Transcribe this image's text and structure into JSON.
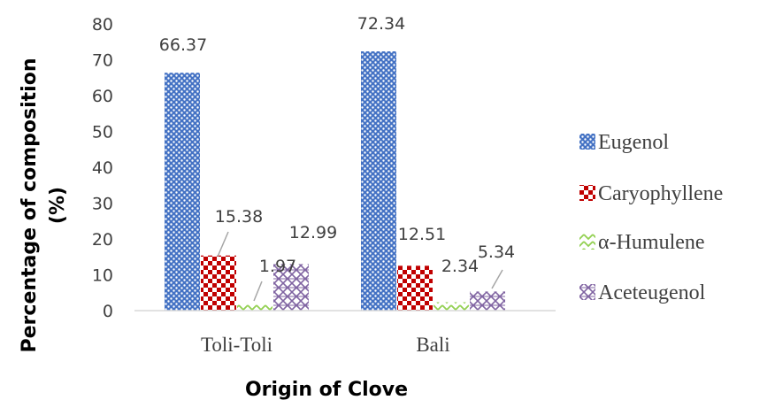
{
  "chart_data": {
    "type": "bar",
    "categories": [
      "Toli-Toli",
      "Bali"
    ],
    "series": [
      {
        "name": "Eugenol",
        "values": [
          66.37,
          72.34
        ],
        "color": "#4472C4",
        "pattern": "dots"
      },
      {
        "name": "Caryophyllene",
        "values": [
          15.38,
          12.51
        ],
        "color": "#C00000",
        "pattern": "checker"
      },
      {
        "name": "α-Humulene",
        "values": [
          1.97,
          2.34
        ],
        "color": "#92D050",
        "pattern": "chevron"
      },
      {
        "name": "Aceteugenol",
        "values": [
          12.99,
          5.34
        ],
        "color": "#8064A2",
        "pattern": "weave"
      }
    ],
    "data_labels": {
      "Toli-Toli": [
        "66.37",
        "15.38",
        "1.97",
        "12.99"
      ],
      "Bali": [
        "72.34",
        "12.51",
        "2.34",
        "5.34"
      ]
    },
    "title": "",
    "xlabel": "Origin of Clove",
    "ylabel_line1": "Percentage of composition",
    "ylabel_line2": "(%)",
    "ylim": [
      0,
      80
    ],
    "yticks": [
      "0",
      "10",
      "20",
      "30",
      "40",
      "50",
      "60",
      "70",
      "80"
    ],
    "grid": false,
    "legend_position": "right"
  }
}
